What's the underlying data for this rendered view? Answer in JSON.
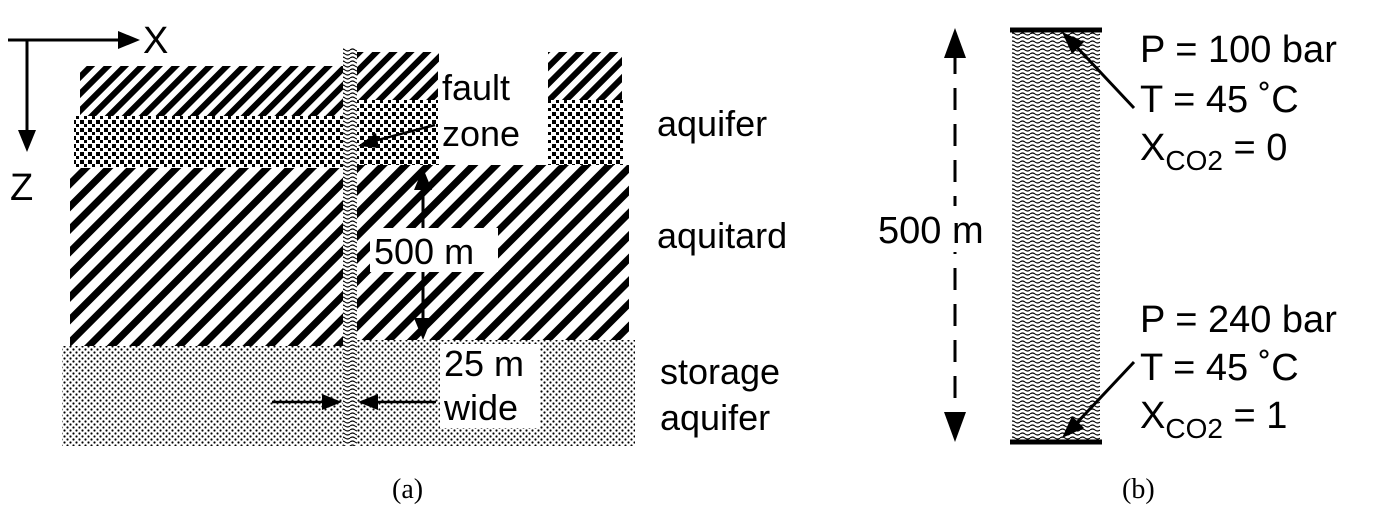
{
  "panel_a": {
    "axis_x": "X",
    "axis_z": "Z",
    "fault_label_line1": "fault",
    "fault_label_line2": "zone",
    "height_label": "500 m",
    "width_label_line1": "25 m",
    "width_label_line2": "wide",
    "layer_aquifer": "aquifer",
    "layer_aquitard": "aquitard",
    "layer_storage_line1": "storage",
    "layer_storage_line2": "aquifer",
    "caption": "(a)"
  },
  "panel_b": {
    "height_label": "500 m",
    "top_p": "P = 100 bar",
    "top_t": "T = 45 ˚C",
    "top_x_main": "X",
    "top_x_sub": "CO2",
    "top_x_val": " = 0",
    "bottom_p": "P = 240 bar",
    "bottom_t": "T = 45 ˚C",
    "bottom_x_main": "X",
    "bottom_x_sub": "CO2",
    "bottom_x_val": " = 1",
    "caption": "(b)"
  }
}
